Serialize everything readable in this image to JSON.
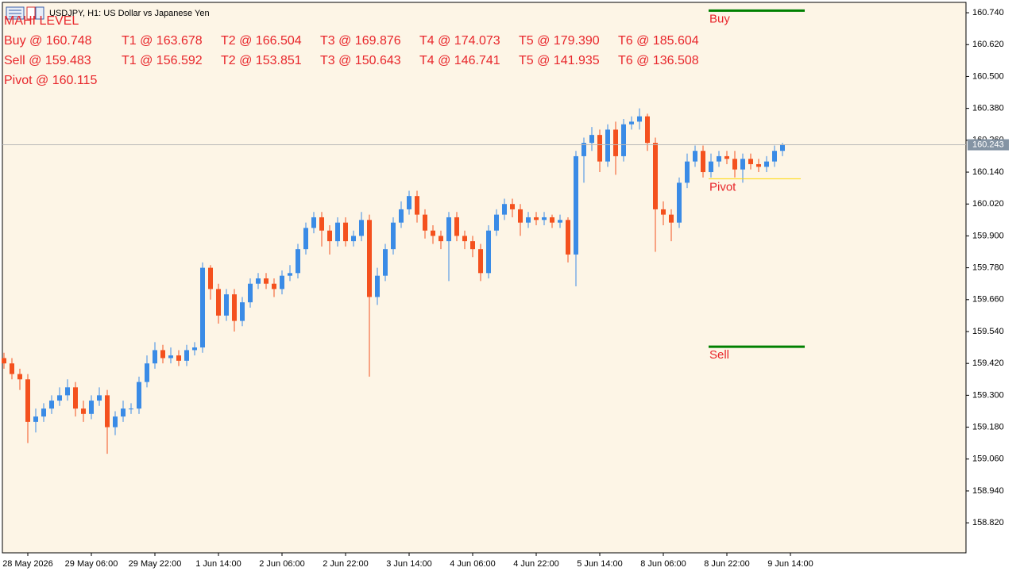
{
  "header": {
    "symbol": "USDJPY, H1:  US Dollar vs Japanese Yen"
  },
  "indicator": {
    "title": "MAHI LEVEL",
    "rows": [
      [
        "Buy @ 160.748",
        "T1 @ 163.678",
        "T2 @ 166.504",
        "T3 @ 169.876",
        "T4 @ 174.073",
        "T5 @ 179.390",
        "T6 @ 185.604"
      ],
      [
        "Sell @ 159.483",
        "T1 @ 156.592",
        "T2 @ 153.851",
        "T3 @ 150.643",
        "T4 @ 146.741",
        "T5 @ 141.935",
        "T6 @ 136.508"
      ],
      [
        "Pivot @ 160.115"
      ]
    ]
  },
  "chart_data": {
    "type": "candlestick",
    "up_color": "#3a8be6",
    "down_color": "#f4511e",
    "open": [
      159.44,
      159.42,
      159.38,
      159.36,
      159.2,
      159.22,
      159.25,
      159.28,
      159.3,
      159.33,
      159.25,
      159.23,
      159.28,
      159.3,
      159.18,
      159.22,
      159.25,
      159.25,
      159.35,
      159.42,
      159.47,
      159.44,
      159.45,
      159.43,
      159.47,
      159.48,
      159.78,
      159.7,
      159.6,
      159.68,
      159.58,
      159.65,
      159.72,
      159.74,
      159.72,
      159.7,
      159.75,
      159.76,
      159.85,
      159.93,
      159.97,
      159.92,
      159.88,
      159.95,
      159.88,
      159.9,
      159.96,
      159.67,
      159.75,
      159.85,
      159.95,
      160.0,
      160.05,
      159.98,
      159.92,
      159.9,
      159.88,
      159.97,
      159.9,
      159.88,
      159.85,
      159.76,
      159.92,
      159.98,
      160.02,
      160.0,
      159.95,
      159.97,
      159.96,
      159.97,
      159.95,
      159.96,
      159.83,
      160.2,
      160.25,
      160.28,
      160.18,
      160.3,
      160.2,
      160.32,
      160.33,
      160.35,
      160.25,
      160.0,
      159.98,
      159.95,
      160.1,
      160.18,
      160.22,
      160.14,
      160.18,
      160.2,
      160.19,
      160.15,
      160.19,
      160.17,
      160.16,
      160.18,
      160.22
    ],
    "high": [
      159.46,
      159.44,
      159.4,
      159.38,
      159.25,
      159.27,
      159.3,
      159.33,
      159.36,
      159.35,
      159.28,
      159.3,
      159.33,
      159.32,
      159.24,
      159.28,
      159.27,
      159.37,
      159.45,
      159.5,
      159.49,
      159.48,
      159.47,
      159.49,
      159.5,
      159.8,
      159.79,
      159.72,
      159.7,
      159.7,
      159.67,
      159.74,
      159.76,
      159.76,
      159.74,
      159.77,
      159.79,
      159.87,
      159.95,
      159.99,
      159.99,
      159.94,
      159.97,
      159.97,
      159.92,
      159.99,
      159.98,
      159.78,
      159.87,
      159.97,
      160.03,
      160.07,
      160.07,
      160.0,
      159.94,
      159.92,
      159.99,
      159.99,
      159.92,
      159.9,
      159.87,
      159.94,
      160.0,
      160.04,
      160.04,
      160.02,
      159.99,
      159.99,
      159.99,
      159.98,
      159.98,
      159.97,
      160.22,
      160.27,
      160.31,
      160.3,
      160.32,
      160.33,
      160.34,
      160.35,
      160.38,
      160.36,
      160.27,
      160.03,
      160.0,
      160.12,
      160.21,
      160.24,
      160.24,
      160.21,
      160.22,
      160.22,
      160.22,
      160.21,
      160.21,
      160.19,
      160.2,
      160.24,
      160.25
    ],
    "low": [
      159.4,
      159.36,
      159.32,
      159.12,
      159.16,
      159.2,
      159.23,
      159.26,
      159.28,
      159.22,
      159.2,
      159.21,
      159.26,
      159.08,
      159.15,
      159.2,
      159.23,
      159.23,
      159.33,
      159.4,
      159.42,
      159.42,
      159.41,
      159.41,
      159.45,
      159.46,
      159.66,
      159.57,
      159.58,
      159.54,
      159.56,
      159.63,
      159.7,
      159.7,
      159.67,
      159.68,
      159.73,
      159.74,
      159.83,
      159.91,
      159.86,
      159.83,
      159.86,
      159.86,
      159.86,
      159.88,
      159.37,
      159.64,
      159.73,
      159.83,
      159.93,
      159.98,
      159.95,
      159.89,
      159.87,
      159.85,
      159.73,
      159.88,
      159.85,
      159.82,
      159.73,
      159.74,
      159.9,
      159.96,
      159.97,
      159.9,
      159.93,
      159.94,
      159.94,
      159.93,
      159.93,
      159.8,
      159.71,
      160.1,
      160.22,
      160.14,
      160.16,
      160.13,
      160.18,
      160.3,
      160.3,
      160.22,
      159.84,
      159.94,
      159.88,
      159.93,
      160.08,
      160.16,
      160.12,
      160.12,
      160.16,
      160.17,
      160.12,
      160.1,
      160.15,
      160.14,
      160.14,
      160.16,
      160.2
    ],
    "close": [
      159.42,
      159.38,
      159.36,
      159.2,
      159.22,
      159.25,
      159.28,
      159.3,
      159.33,
      159.25,
      159.23,
      159.28,
      159.3,
      159.18,
      159.22,
      159.25,
      159.25,
      159.35,
      159.42,
      159.47,
      159.44,
      159.45,
      159.43,
      159.47,
      159.48,
      159.78,
      159.7,
      159.6,
      159.68,
      159.58,
      159.65,
      159.72,
      159.74,
      159.72,
      159.7,
      159.75,
      159.76,
      159.85,
      159.93,
      159.97,
      159.92,
      159.88,
      159.95,
      159.88,
      159.9,
      159.96,
      159.67,
      159.75,
      159.85,
      159.95,
      160.0,
      160.05,
      159.98,
      159.92,
      159.9,
      159.88,
      159.97,
      159.9,
      159.88,
      159.85,
      159.76,
      159.92,
      159.98,
      160.02,
      160.0,
      159.95,
      159.97,
      159.96,
      159.97,
      159.95,
      159.96,
      159.83,
      160.2,
      160.25,
      160.28,
      160.18,
      160.3,
      160.2,
      160.32,
      160.33,
      160.35,
      160.25,
      160.0,
      159.98,
      159.95,
      160.1,
      160.18,
      160.22,
      160.14,
      160.18,
      160.2,
      160.19,
      160.15,
      160.19,
      160.17,
      160.16,
      160.18,
      160.22,
      160.243
    ],
    "xlim": [
      -0.2,
      121.1
    ],
    "xticks": [
      {
        "value": 3,
        "label": "28 May 2026"
      },
      {
        "value": 11,
        "label": "29 May 06:00"
      },
      {
        "value": 19,
        "label": "29 May 22:00"
      },
      {
        "value": 27,
        "label": "1 Jun 14:00"
      },
      {
        "value": 35,
        "label": "2 Jun 06:00"
      },
      {
        "value": 43,
        "label": "2 Jun 22:00"
      },
      {
        "value": 51,
        "label": "3 Jun 14:00"
      },
      {
        "value": 59,
        "label": "4 Jun 06:00"
      },
      {
        "value": 67,
        "label": "4 Jun 22:00"
      },
      {
        "value": 75,
        "label": "5 Jun 14:00"
      },
      {
        "value": 83,
        "label": "8 Jun 06:00"
      },
      {
        "value": 91,
        "label": "8 Jun 22:00"
      },
      {
        "value": 99,
        "label": "9 Jun 14:00"
      }
    ],
    "ylim": [
      158.707,
      160.779
    ],
    "yticks": [
      {
        "value": 160.74,
        "label": "160.740"
      },
      {
        "value": 160.62,
        "label": "160.620"
      },
      {
        "value": 160.5,
        "label": "160.500"
      },
      {
        "value": 160.38,
        "label": "160.380"
      },
      {
        "value": 160.26,
        "label": "160.260"
      },
      {
        "value": 160.14,
        "label": "160.140"
      },
      {
        "value": 160.02,
        "label": "160.020"
      },
      {
        "value": 159.9,
        "label": "159.900"
      },
      {
        "value": 159.78,
        "label": "159.780"
      },
      {
        "value": 159.66,
        "label": "159.660"
      },
      {
        "value": 159.54,
        "label": "159.540"
      },
      {
        "value": 159.42,
        "label": "159.420"
      },
      {
        "value": 159.3,
        "label": "159.300"
      },
      {
        "value": 159.18,
        "label": "159.180"
      },
      {
        "value": 159.06,
        "label": "159.060"
      },
      {
        "value": 158.94,
        "label": "158.940"
      },
      {
        "value": 158.82,
        "label": "158.820"
      }
    ],
    "levels": [
      {
        "name": "Buy",
        "value": 160.748,
        "color": "#008000"
      },
      {
        "name": "Pivot",
        "value": 160.115,
        "color": "#ffd700"
      },
      {
        "name": "Sell",
        "value": 159.483,
        "color": "#008000"
      }
    ],
    "last_price": 160.243
  }
}
